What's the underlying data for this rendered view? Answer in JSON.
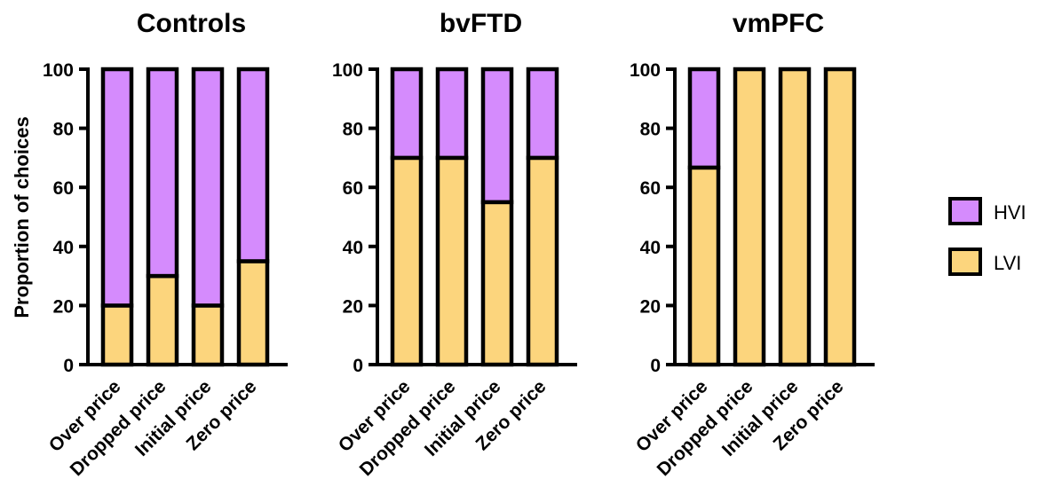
{
  "chart_data": {
    "type": "bar",
    "stacked": true,
    "ylabel": "Proportion of choices",
    "ylim": [
      0,
      100
    ],
    "yticks": [
      0,
      20,
      40,
      60,
      80,
      100
    ],
    "categories": [
      "Over price",
      "Dropped price",
      "Initial price",
      "Zero price"
    ],
    "legend": {
      "position": "right",
      "entries": [
        {
          "name": "HVI",
          "color": "#d58bfd"
        },
        {
          "name": "LVI",
          "color": "#fcd57d"
        }
      ]
    },
    "panels": [
      {
        "title": "Controls",
        "series": [
          {
            "name": "LVI",
            "values": [
              20,
              30,
              20,
              35
            ]
          },
          {
            "name": "HVI",
            "values": [
              80,
              70,
              80,
              65
            ]
          }
        ]
      },
      {
        "title": "bvFTD",
        "series": [
          {
            "name": "LVI",
            "values": [
              70,
              70,
              55,
              70
            ]
          },
          {
            "name": "HVI",
            "values": [
              30,
              30,
              45,
              30
            ]
          }
        ]
      },
      {
        "title": "vmPFC",
        "series": [
          {
            "name": "LVI",
            "values": [
              66.7,
              100,
              100,
              100
            ]
          },
          {
            "name": "HVI",
            "values": [
              33.3,
              0,
              0,
              0
            ]
          }
        ]
      }
    ]
  }
}
